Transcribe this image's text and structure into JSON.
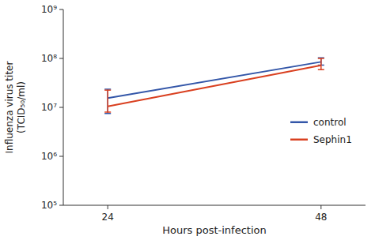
{
  "chart_data": {
    "type": "line",
    "x_label": "Hours post-infection",
    "y_label": "Influenza virus titer\n(TCID₅₀/ml)",
    "x": [
      24,
      48
    ],
    "series": [
      {
        "name": "control",
        "color": "#3356a8",
        "values": [
          15500000,
          85000000
        ],
        "error_low": [
          8000000,
          12000000
        ],
        "error_high": [
          8000000,
          18000000
        ]
      },
      {
        "name": "Sephin1",
        "color": "#d94020",
        "values": [
          10500000,
          72000000
        ],
        "error_low": [
          2500000,
          13000000
        ],
        "error_high": [
          12000000,
          28000000
        ]
      }
    ],
    "log": "y",
    "xlim": [
      19,
      53
    ],
    "xticks": [
      24,
      48
    ],
    "ylim": [
      100000,
      1000000000
    ],
    "yticks": [
      {
        "value": 100000,
        "label": "10⁵"
      },
      {
        "value": 1000000,
        "label": "10⁶"
      },
      {
        "value": 10000000,
        "label": "10⁷"
      },
      {
        "value": 100000000,
        "label": "10⁸"
      },
      {
        "value": 1000000000,
        "label": "10⁹"
      }
    ],
    "grid": false,
    "legend": "right"
  }
}
